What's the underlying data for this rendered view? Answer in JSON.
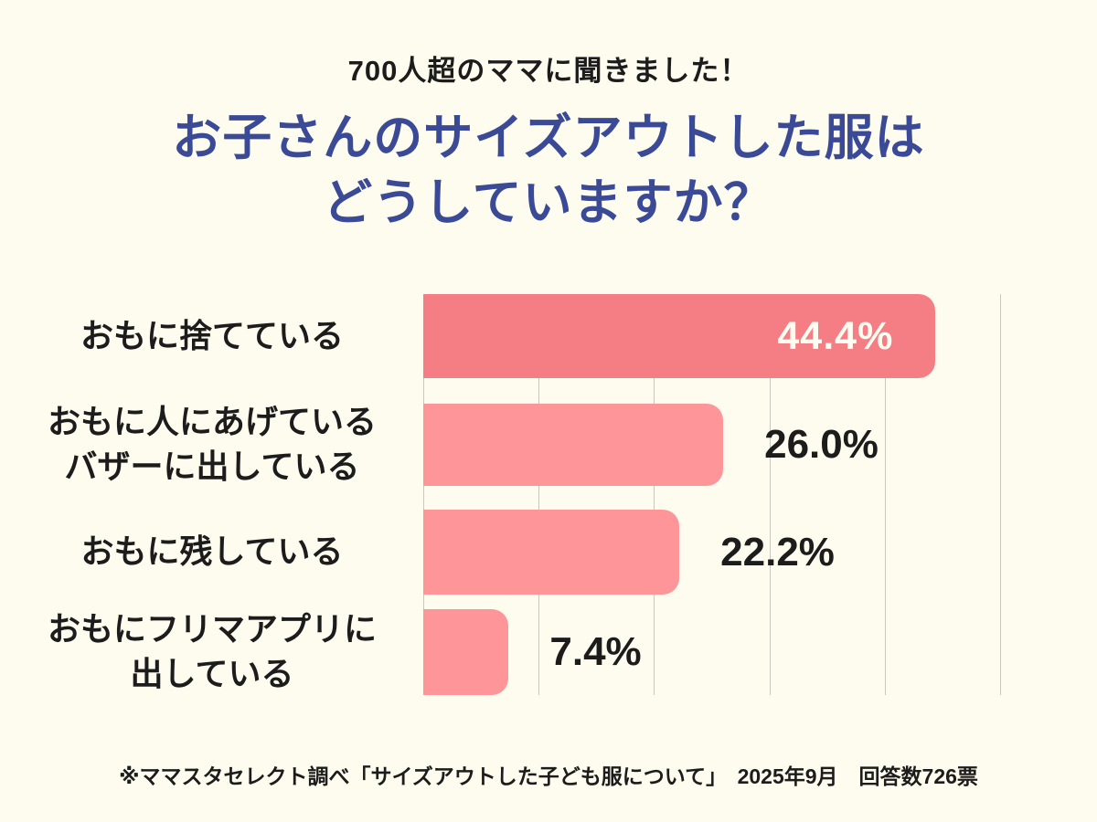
{
  "header": {
    "kicker": "700人超のママに聞きました！"
  },
  "title": {
    "line1": "お子さんのサイズアウトした服は",
    "line2": "どうしていますか？"
  },
  "chart_data": {
    "type": "bar",
    "orientation": "horizontal",
    "title": "お子さんのサイズアウトした服はどうしていますか？",
    "categories": [
      "おもに捨てている",
      "おもに人にあげている\nバザーに出している",
      "おもに残している",
      "おもにフリマアプリに\n出している"
    ],
    "values": [
      44.4,
      26.0,
      22.2,
      7.4
    ],
    "value_labels": [
      "44.4%",
      "26.0%",
      "22.2%",
      "7.4%"
    ],
    "value_suffix": "%",
    "xlim": [
      0,
      50
    ],
    "grid_step": 10,
    "grid": true,
    "legend": false,
    "bar_colors": [
      "#F47E84",
      "#FE9598",
      "#FE9598",
      "#FE9598"
    ],
    "value_label_placement": [
      "inside",
      "outside",
      "outside",
      "outside"
    ]
  },
  "footer": {
    "source": "※ママスタセレクト調べ「サイズアウトした子ども服について」　2025年9月　回答数726票"
  },
  "colors": {
    "background": "#FDFCEE",
    "title": "#3B4A97",
    "text": "#1C1C1C",
    "bar_primary": "#F47E84",
    "bar_secondary": "#FE9598",
    "gridline": "#C8C8C0",
    "value_inside_text": "#FFFDF2"
  }
}
